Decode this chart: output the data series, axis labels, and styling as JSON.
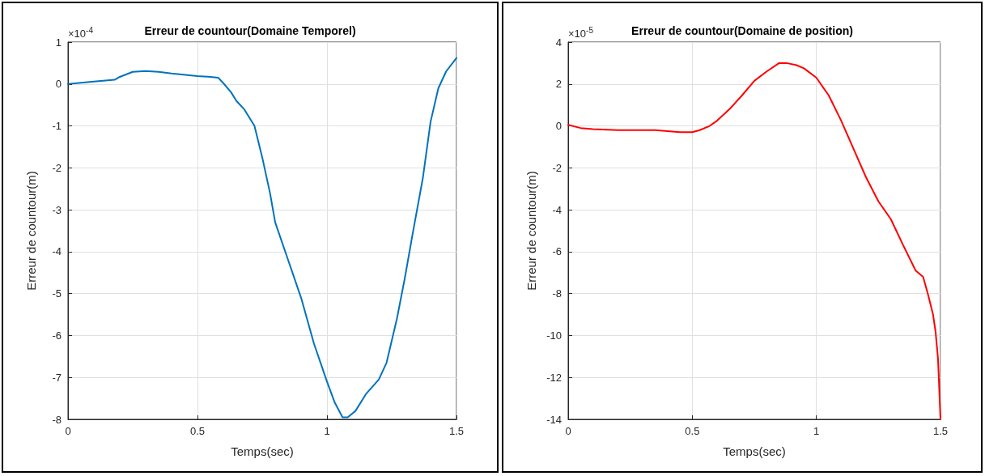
{
  "chart_data": [
    {
      "type": "line",
      "title": "Erreur de countour(Domaine Temporel)",
      "xlabel": "Temps(sec)",
      "ylabel": "Erreur de countour(m)",
      "annotations": [
        "×10$^{-4}$"
      ],
      "x": [
        0,
        0.1,
        0.18,
        0.2,
        0.25,
        0.3,
        0.35,
        0.4,
        0.5,
        0.55,
        0.58,
        0.6,
        0.63,
        0.65,
        0.68,
        0.72,
        0.75,
        0.78,
        0.8,
        0.85,
        0.9,
        0.95,
        1.0,
        1.03,
        1.06,
        1.08,
        1.11,
        1.15,
        1.2,
        1.23,
        1.27,
        1.3,
        1.33,
        1.37,
        1.4,
        1.43,
        1.46,
        1.5
      ],
      "series": [
        {
          "color": "#0072bd",
          "values": [
            0,
            0.06,
            0.1,
            0.17,
            0.29,
            0.31,
            0.29,
            0.25,
            0.19,
            0.17,
            0.15,
            0.02,
            -0.2,
            -0.4,
            -0.6,
            -1.0,
            -1.75,
            -2.6,
            -3.3,
            -4.2,
            -5.1,
            -6.2,
            -7.1,
            -7.6,
            -7.95,
            -7.95,
            -7.8,
            -7.4,
            -7.05,
            -6.65,
            -5.6,
            -4.65,
            -3.6,
            -2.25,
            -0.9,
            -0.1,
            0.3,
            0.62
          ]
        }
      ],
      "xlim": [
        0,
        1.5
      ],
      "xticks": [
        0,
        0.5,
        1,
        1.5
      ],
      "ylim": [
        -8,
        1
      ],
      "yticks": [
        -8,
        -7,
        -6,
        -5,
        -4,
        -3,
        -2,
        -1,
        0,
        1
      ],
      "grid": true,
      "marker": "none",
      "line_style": "solid"
    },
    {
      "type": "line",
      "title": "Erreur de countour(Domaine de position)",
      "xlabel": "Temps(sec)",
      "ylabel": "Erreur de countour(m)",
      "annotations": [
        "×10$^{-5}$"
      ],
      "x": [
        0,
        0.05,
        0.1,
        0.2,
        0.3,
        0.35,
        0.4,
        0.45,
        0.5,
        0.53,
        0.57,
        0.6,
        0.65,
        0.7,
        0.75,
        0.8,
        0.85,
        0.88,
        0.92,
        0.95,
        1.0,
        1.05,
        1.1,
        1.15,
        1.2,
        1.25,
        1.3,
        1.35,
        1.4,
        1.43,
        1.45,
        1.47,
        1.48,
        1.49,
        1.5
      ],
      "series": [
        {
          "color": "#ff0000",
          "values": [
            0.05,
            -0.1,
            -0.15,
            -0.2,
            -0.2,
            -0.2,
            -0.25,
            -0.3,
            -0.3,
            -0.2,
            0,
            0.25,
            0.8,
            1.45,
            2.15,
            2.6,
            3.0,
            3.0,
            2.9,
            2.75,
            2.3,
            1.45,
            0.25,
            -1.1,
            -2.45,
            -3.6,
            -4.45,
            -5.7,
            -6.9,
            -7.2,
            -8.05,
            -9.0,
            -9.8,
            -11.1,
            -14
          ]
        }
      ],
      "xlim": [
        0,
        1.5
      ],
      "xticks": [
        0,
        0.5,
        1,
        1.5
      ],
      "ylim": [
        -14,
        4
      ],
      "yticks": [
        -14,
        -12,
        -10,
        -8,
        -6,
        -4,
        -2,
        0,
        2,
        4
      ],
      "grid": true,
      "marker": "none",
      "line_style": "solid"
    }
  ]
}
